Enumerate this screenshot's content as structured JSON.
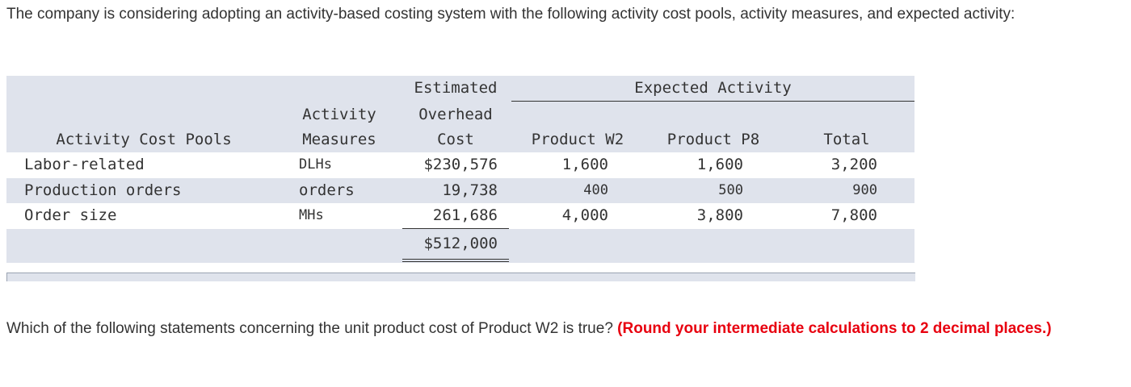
{
  "intro_text": "The company is considering adopting an activity-based costing system with the following activity cost pools, activity measures, and expected activity:",
  "table": {
    "headers": {
      "estimated": "Estimated",
      "overhead": "Overhead",
      "cost": "Cost",
      "expected_activity": "Expected Activity",
      "activity": "Activity",
      "measures": "Measures",
      "cost_pools": "Activity Cost Pools",
      "product_w2": "Product W2",
      "product_p8": "Product P8",
      "total": "Total"
    },
    "rows": [
      {
        "pool": "Labor-related",
        "measure": "DLHs",
        "cost": "$230,576",
        "w2": "1,600",
        "p8": "1,600",
        "total": "3,200"
      },
      {
        "pool": "Production orders",
        "measure": "orders",
        "cost": "19,738",
        "w2": "400",
        "p8": "500",
        "total": "900"
      },
      {
        "pool": "Order size",
        "measure": "MHs",
        "cost": "261,686",
        "w2": "4,000",
        "p8": "3,800",
        "total": "7,800"
      }
    ],
    "grand_total": "$512,000"
  },
  "question": {
    "text": "Which of the following statements concerning the unit product cost of Product W2 is true? ",
    "emphasis": "(Round your intermediate calculations to 2 decimal places.)"
  },
  "colors": {
    "band": "#dfe3ec",
    "emphasis": "#e8000f",
    "text": "#333333"
  }
}
